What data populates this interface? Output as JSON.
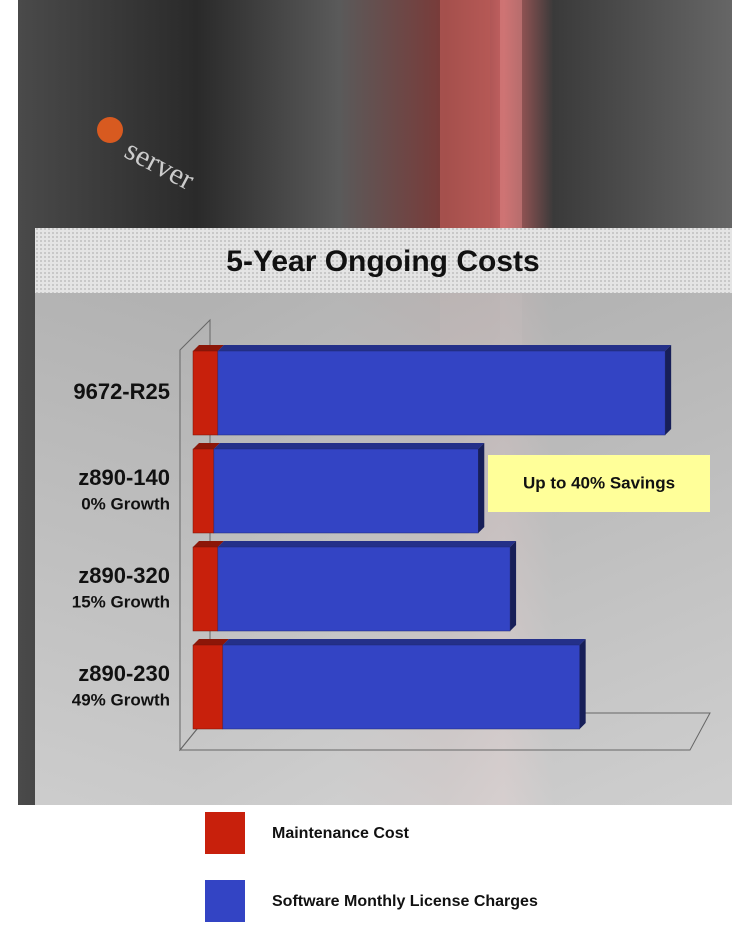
{
  "chart_data": {
    "type": "stacked-bar-horizontal",
    "brand": "server",
    "title": "5-Year Ongoing Costs",
    "categories": [
      "9672-R25",
      "z890-140",
      "z890-320",
      "z890-230"
    ],
    "category_notes": [
      null,
      "0% Growth",
      "15% Growth",
      "49% Growth"
    ],
    "series": [
      {
        "name": "Maintenance Cost",
        "color": "#c8200c",
        "values": [
          25,
          21,
          25,
          30
        ]
      },
      {
        "name": "Software Monthly License Charges",
        "color": "#3344c4",
        "values": [
          450,
          266,
          294,
          359
        ]
      }
    ],
    "xlim": [
      0,
      500
    ],
    "annotation": "Up to 40% Savings"
  }
}
